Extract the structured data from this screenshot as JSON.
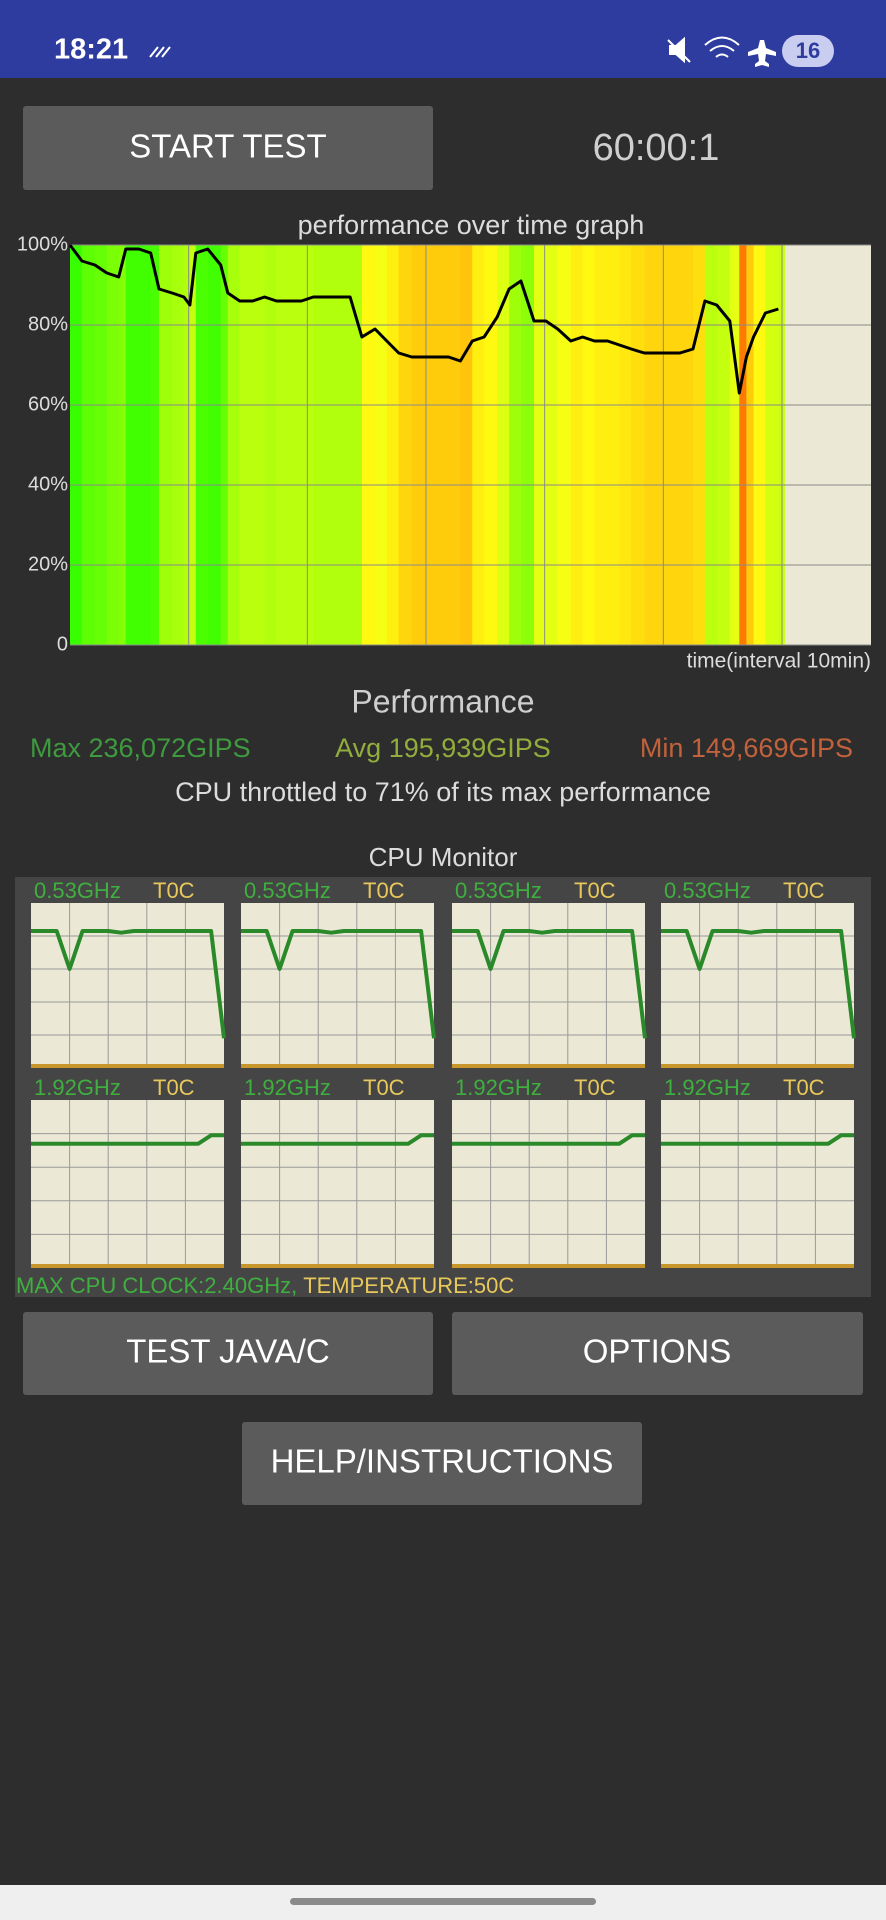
{
  "status_bar": {
    "time": "18:21",
    "battery": "16"
  },
  "buttons": {
    "start_test": "START TEST",
    "test_java": "TEST JAVA/C",
    "options": "OPTIONS",
    "help": "HELP/INSTRUCTIONS"
  },
  "timer": "60:00:1",
  "performance_graph": {
    "type": "line",
    "title": "performance over time graph",
    "x_label": "time(interval 10min)",
    "ylim": [
      0,
      100
    ],
    "yticks": [
      {
        "value": 100,
        "label": "100%"
      },
      {
        "value": 80,
        "label": "80%"
      },
      {
        "value": 60,
        "label": "60%"
      },
      {
        "value": 40,
        "label": "40%"
      },
      {
        "value": 20,
        "label": "20%"
      },
      0
    ],
    "xlim": [
      0,
      67.5
    ],
    "xgrid": [
      10,
      20,
      30,
      40,
      50,
      60
    ],
    "color": "#000000",
    "x": [
      0,
      1,
      2.1,
      3.1,
      4.1,
      4.7,
      5.8,
      6.8,
      7.5,
      8.6,
      9.6,
      10.1,
      10.6,
      11.6,
      12.7,
      13.3,
      14.3,
      15.4,
      16.4,
      17.4,
      18.5,
      19.5,
      20.5,
      21.5,
      22.6,
      23.6,
      24.6,
      25.7,
      26.7,
      27.7,
      28.8,
      29.8,
      30.8,
      31.9,
      32.9,
      33.9,
      34.9,
      36,
      37,
      38,
      39.1,
      40.1,
      41.1,
      42.2,
      43.2,
      44.2,
      45.3,
      46.3,
      47.3,
      48.4,
      49.4,
      50.4,
      51.4,
      52.5,
      53.5,
      54.5,
      55.6,
      56.4,
      57,
      57.6,
      58.6,
      59.7
    ],
    "values": [
      100,
      96,
      95,
      93,
      92,
      99,
      99,
      98,
      89,
      88,
      87,
      85,
      98,
      99,
      95,
      88,
      86,
      86,
      87,
      86,
      86,
      86,
      87,
      87,
      87,
      87,
      77,
      79,
      76,
      73,
      72,
      72,
      72,
      72,
      71,
      76,
      77,
      82,
      89,
      91,
      81,
      81,
      79,
      76,
      77,
      76,
      76,
      75,
      74,
      73,
      73,
      73,
      73,
      74,
      86,
      85,
      81,
      63,
      72,
      77,
      83,
      84
    ]
  },
  "performance": {
    "title": "Performance",
    "max": "Max 236,072GIPS",
    "avg": "Avg 195,939GIPS",
    "min": "Min 149,669GIPS",
    "summary": "CPU throttled to 71% of its max performance"
  },
  "cpu_monitor": {
    "title": "CPU Monitor",
    "ylim": [
      0,
      100
    ],
    "cores": [
      {
        "freq": "0.53GHz",
        "temp": "T0C",
        "values": [
          83,
          83,
          83,
          60,
          83,
          83,
          83,
          82,
          83,
          83,
          83,
          83,
          83,
          83,
          83,
          18
        ]
      },
      {
        "freq": "0.53GHz",
        "temp": "T0C",
        "values": [
          83,
          83,
          83,
          60,
          83,
          83,
          83,
          82,
          83,
          83,
          83,
          83,
          83,
          83,
          83,
          18
        ]
      },
      {
        "freq": "0.53GHz",
        "temp": "T0C",
        "values": [
          83,
          83,
          83,
          60,
          83,
          83,
          83,
          82,
          83,
          83,
          83,
          83,
          83,
          83,
          83,
          18
        ]
      },
      {
        "freq": "0.53GHz",
        "temp": "T0C",
        "values": [
          83,
          83,
          83,
          60,
          83,
          83,
          83,
          82,
          83,
          83,
          83,
          83,
          83,
          83,
          83,
          18
        ]
      },
      {
        "freq": "1.92GHz",
        "temp": "T0C",
        "values": [
          74,
          74,
          74,
          74,
          74,
          74,
          74,
          74,
          74,
          74,
          74,
          74,
          74,
          74,
          79,
          79
        ]
      },
      {
        "freq": "1.92GHz",
        "temp": "T0C",
        "values": [
          74,
          74,
          74,
          74,
          74,
          74,
          74,
          74,
          74,
          74,
          74,
          74,
          74,
          74,
          79,
          79
        ]
      },
      {
        "freq": "1.92GHz",
        "temp": "T0C",
        "values": [
          74,
          74,
          74,
          74,
          74,
          74,
          74,
          74,
          74,
          74,
          74,
          74,
          74,
          74,
          79,
          79
        ]
      },
      {
        "freq": "1.92GHz",
        "temp": "T0C",
        "values": [
          74,
          74,
          74,
          74,
          74,
          74,
          74,
          74,
          74,
          74,
          74,
          74,
          74,
          74,
          79,
          79
        ]
      }
    ],
    "footer_clock": "MAX CPU CLOCK:2.40GHz,",
    "footer_temp": "TEMPERATURE:50C"
  }
}
